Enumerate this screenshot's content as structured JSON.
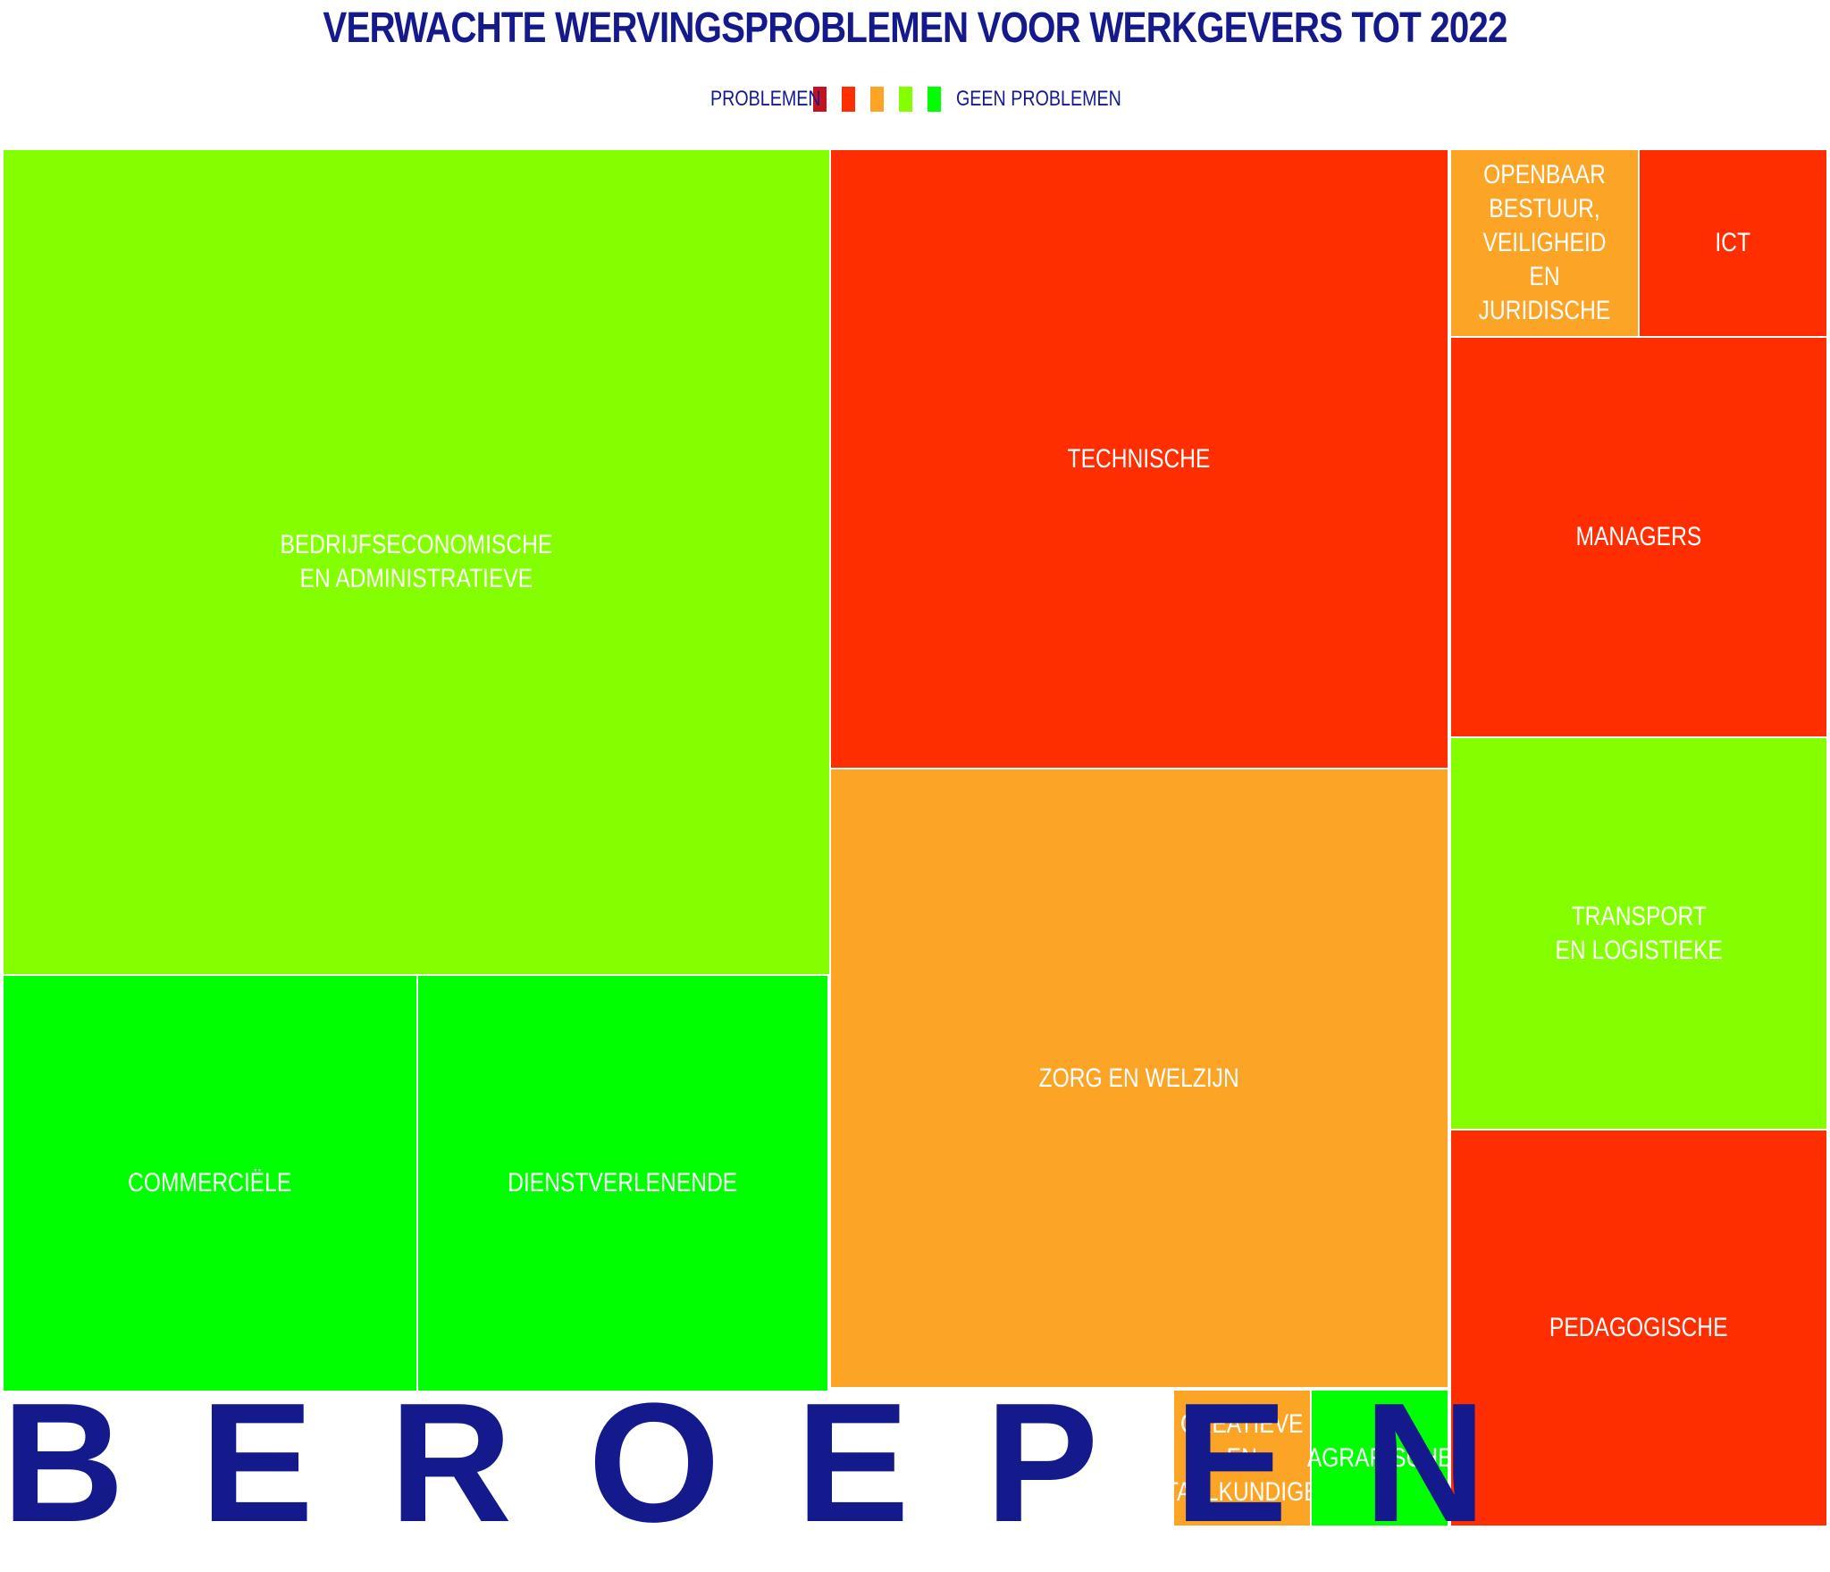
{
  "chart_data": {
    "type": "treemap",
    "title": "VERWACHTE WERVINGSPROBLEMEN VOOR WERKGEVERS TOT 2022",
    "legend": {
      "low_label": "PROBLEMEN",
      "high_label": "GEEN PROBLEMEN",
      "colors": [
        "#c4121f",
        "#ff2e00",
        "#fca426",
        "#84ff00",
        "#00ff00"
      ]
    },
    "group_label": "BEROEPEN",
    "items": [
      {
        "label": "BEDRIJFSECONOMISCHE\nEN ADMINISTRATIEVE",
        "level": 4,
        "color": "#84ff00"
      },
      {
        "label": "COMMERCIËLE",
        "level": 5,
        "color": "#00ff00"
      },
      {
        "label": "DIENSTVERLENENDE",
        "level": 5,
        "color": "#00ff00"
      },
      {
        "label": "TECHNISCHE",
        "level": 2,
        "color": "#ff2e00"
      },
      {
        "label": "ZORG EN WELZIJN",
        "level": 3,
        "color": "#fca426"
      },
      {
        "label": "CREATIEVE\nEN\nTAALKUNDIGE",
        "level": 3,
        "color": "#fca426"
      },
      {
        "label": "AGRARISCHE",
        "level": 5,
        "color": "#00ff00"
      },
      {
        "label": "OPENBAAR\nBESTUUR,\nVEILIGHEID EN\nJURIDISCHE",
        "level": 3,
        "color": "#fca426"
      },
      {
        "label": "ICT",
        "level": 2,
        "color": "#ff2e00"
      },
      {
        "label": "MANAGERS",
        "level": 2,
        "color": "#ff2e00"
      },
      {
        "label": "TRANSPORT\nEN LOGISTIEKE",
        "level": 4,
        "color": "#84ff00"
      },
      {
        "label": "PEDAGOGISCHE",
        "level": 2,
        "color": "#ff2e00"
      }
    ]
  }
}
